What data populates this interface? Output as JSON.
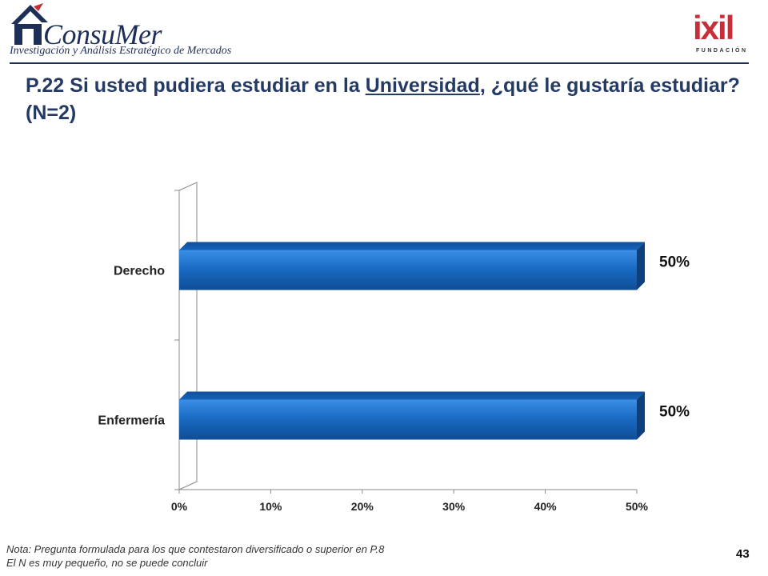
{
  "header": {
    "brand_name": "ConsuMer",
    "brand_tagline": "Investigación y Análisis Estratégico de Mercados",
    "partner_name": "ixil",
    "partner_sub": "FUNDACIÓN"
  },
  "title": {
    "prefix": "P.22 Si usted pudiera estudiar en la ",
    "underlined": "Universidad",
    "suffix": ", ¿qué le gustaría estudiar? (N=2)"
  },
  "chart_data": {
    "type": "bar",
    "orientation": "horizontal",
    "categories": [
      "Derecho",
      "Enfermería"
    ],
    "values": [
      50,
      50
    ],
    "data_labels": [
      "50%",
      "50%"
    ],
    "x_ticks": [
      "0%",
      "10%",
      "20%",
      "30%",
      "40%",
      "50%"
    ],
    "xlim": [
      0,
      50
    ],
    "bar_color": "#1a6cc4",
    "grid": false,
    "legend": "none"
  },
  "footnote": {
    "line1": "Nota: Pregunta formulada para los que contestaron diversificado o superior en P.8",
    "line2": "El N es muy pequeño, no se puede concluir"
  },
  "page_number": "43"
}
